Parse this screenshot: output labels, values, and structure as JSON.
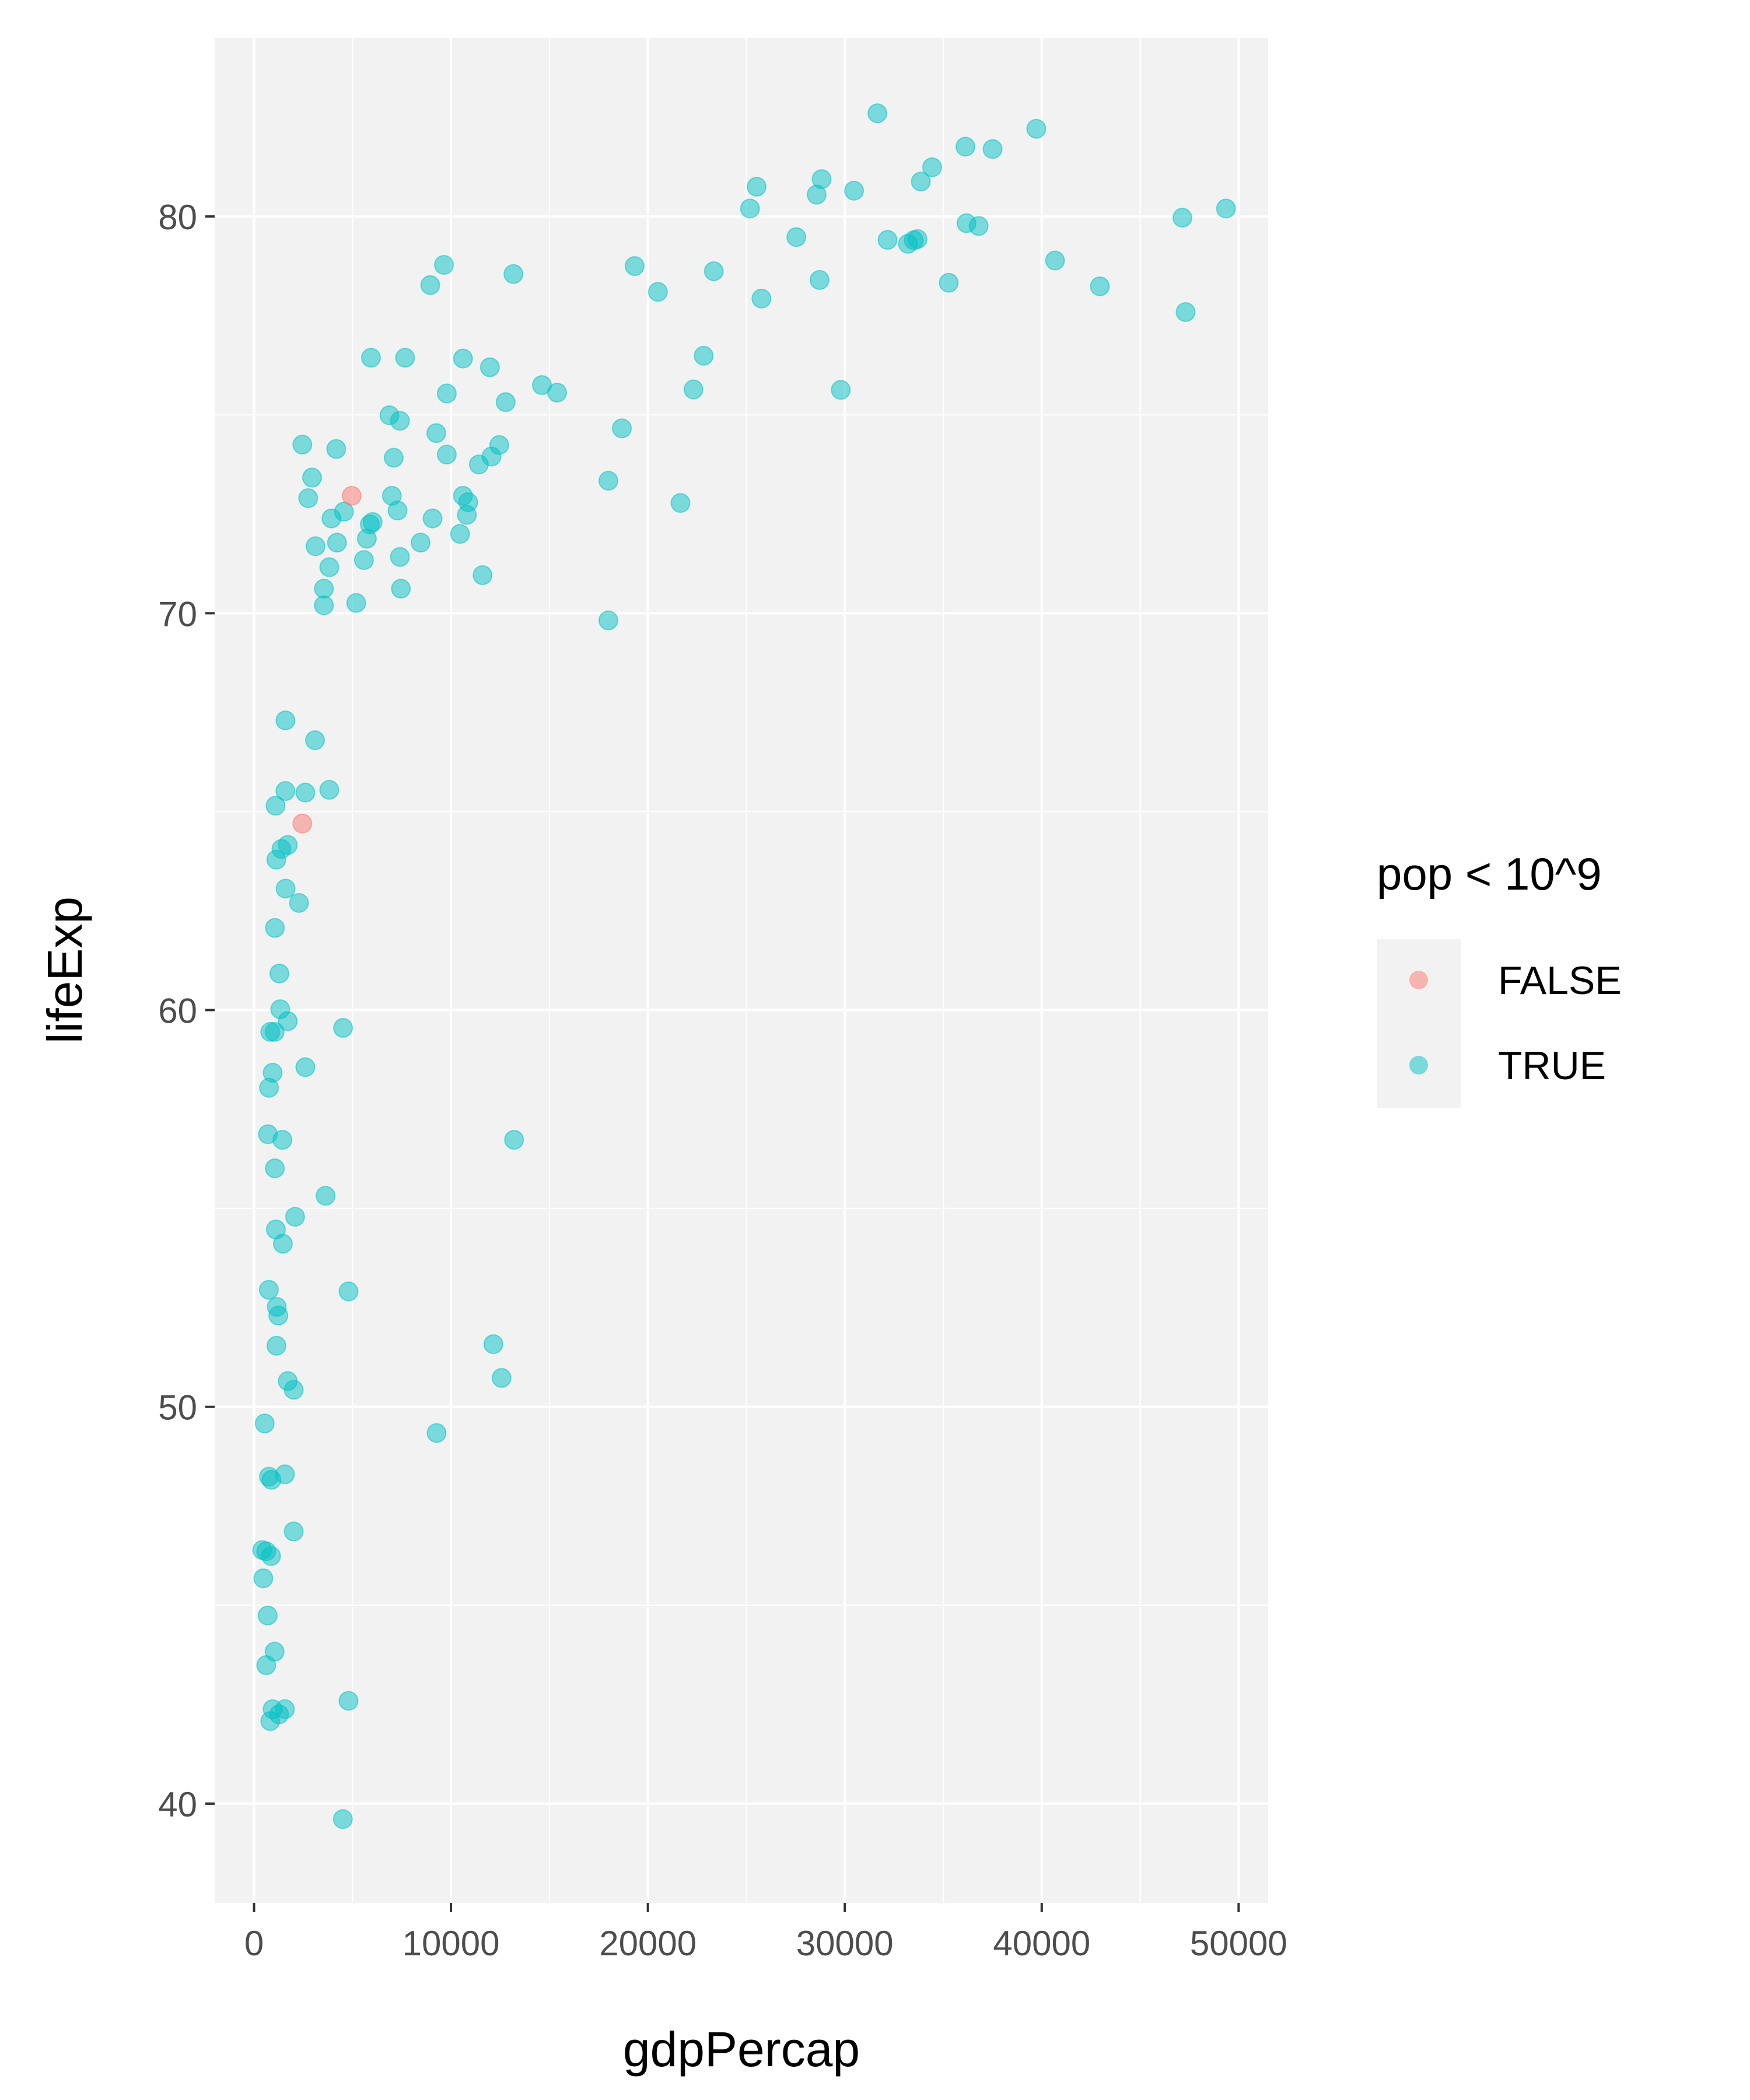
{
  "chart_data": {
    "type": "scatter",
    "title": "",
    "xlabel": "gdpPercap",
    "ylabel": "lifeExp",
    "xlim": [
      -2000,
      51500
    ],
    "ylim": [
      37.5,
      84.5
    ],
    "x_ticks": [
      0,
      10000,
      20000,
      30000,
      40000,
      50000
    ],
    "x_tick_labels": [
      "0",
      "10000",
      "20000",
      "30000",
      "40000",
      "50000"
    ],
    "y_ticks": [
      40,
      50,
      60,
      70,
      80
    ],
    "y_tick_labels": [
      "40",
      "50",
      "60",
      "70",
      "80"
    ],
    "grid": true,
    "panel_background": "#f2f2f2",
    "legend": {
      "title": "pop < 10^9",
      "position": "right",
      "entries": [
        {
          "label": "FALSE",
          "color": "#F8766D"
        },
        {
          "label": "TRUE",
          "color": "#00BFC4"
        }
      ]
    },
    "series": [
      {
        "name": "FALSE",
        "color": "#F8766D",
        "points": [
          [
            4959,
            72.96
          ],
          [
            2452,
            64.7
          ]
        ]
      },
      {
        "name": "TRUE",
        "color": "#00BFC4",
        "points": [
          [
            31656,
            82.6
          ],
          [
            39725,
            82.21
          ],
          [
            36126,
            81.76
          ],
          [
            37506,
            81.7
          ],
          [
            34435,
            81.24
          ],
          [
            28821,
            80.94
          ],
          [
            33860,
            80.88
          ],
          [
            25523,
            80.75
          ],
          [
            30470,
            80.65
          ],
          [
            28570,
            80.55
          ],
          [
            25185,
            80.2
          ],
          [
            49357,
            80.2
          ],
          [
            47143,
            79.97
          ],
          [
            36181,
            79.83
          ],
          [
            36797,
            79.76
          ],
          [
            27538,
            79.48
          ],
          [
            32170,
            79.41
          ],
          [
            33693,
            79.43
          ],
          [
            33207,
            79.31
          ],
          [
            33500,
            79.4
          ],
          [
            40676,
            78.89
          ],
          [
            19328,
            78.75
          ],
          [
            9645,
            78.78
          ],
          [
            13172,
            78.55
          ],
          [
            23348,
            78.62
          ],
          [
            8948,
            78.27
          ],
          [
            28718,
            78.4
          ],
          [
            35278,
            78.33
          ],
          [
            42952,
            78.24
          ],
          [
            20510,
            78.1
          ],
          [
            25768,
            77.93
          ],
          [
            47307,
            77.59
          ],
          [
            5937,
            76.44
          ],
          [
            7670,
            76.44
          ],
          [
            10611,
            76.42
          ],
          [
            11977,
            76.2
          ],
          [
            22833,
            76.49
          ],
          [
            14619,
            75.75
          ],
          [
            22316,
            75.64
          ],
          [
            15390,
            75.56
          ],
          [
            29796,
            75.63
          ],
          [
            9787,
            75.54
          ],
          [
            12779,
            75.32
          ],
          [
            6873,
            74.99
          ],
          [
            7409,
            74.85
          ],
          [
            18678,
            74.66
          ],
          [
            9253,
            74.54
          ],
          [
            2452,
            74.25
          ],
          [
            4173,
            74.14
          ],
          [
            12451,
            74.24
          ],
          [
            9786,
            74.0
          ],
          [
            7092,
            73.92
          ],
          [
            12057,
            73.95
          ],
          [
            11416,
            73.75
          ],
          [
            2945,
            73.42
          ],
          [
            17993,
            73.34
          ],
          [
            2749,
            72.9
          ],
          [
            6999,
            72.96
          ],
          [
            10611,
            72.96
          ],
          [
            10875,
            72.8
          ],
          [
            21655,
            72.78
          ],
          [
            4566,
            72.56
          ],
          [
            3930,
            72.39
          ],
          [
            7288,
            72.59
          ],
          [
            6025,
            72.3
          ],
          [
            5881,
            72.24
          ],
          [
            9066,
            72.39
          ],
          [
            10807,
            72.48
          ],
          [
            5728,
            71.88
          ],
          [
            10461,
            72.0
          ],
          [
            4210,
            71.78
          ],
          [
            8458,
            71.78
          ],
          [
            3121,
            71.69
          ],
          [
            5581,
            71.34
          ],
          [
            7408,
            71.42
          ],
          [
            3821,
            71.16
          ],
          [
            11604,
            70.96
          ],
          [
            3548,
            70.62
          ],
          [
            7458,
            70.62
          ],
          [
            3548,
            70.2
          ],
          [
            5187,
            70.26
          ],
          [
            17993,
            69.82
          ],
          [
            1595,
            67.3
          ],
          [
            3096,
            66.8
          ],
          [
            1592,
            65.52
          ],
          [
            2605,
            65.48
          ],
          [
            3820,
            65.55
          ],
          [
            1091,
            65.15
          ],
          [
            1713,
            64.16
          ],
          [
            1391,
            64.06
          ],
          [
            1131,
            63.79
          ],
          [
            1603,
            63.06
          ],
          [
            2281,
            62.7
          ],
          [
            1059,
            62.07
          ],
          [
            1287,
            60.92
          ],
          [
            1328,
            60.02
          ],
          [
            1712,
            59.72
          ],
          [
            4519,
            59.55
          ],
          [
            824,
            59.45
          ],
          [
            1045,
            59.45
          ],
          [
            2606,
            58.56
          ],
          [
            944,
            58.42
          ],
          [
            759,
            58.04
          ],
          [
            706,
            56.87
          ],
          [
            1441,
            56.73
          ],
          [
            13206,
            56.73
          ],
          [
            1057,
            56.01
          ],
          [
            3633,
            55.32
          ],
          [
            2082,
            54.79
          ],
          [
            1107,
            54.47
          ],
          [
            1463,
            54.11
          ],
          [
            752,
            52.95
          ],
          [
            4797,
            52.91
          ],
          [
            1154,
            52.52
          ],
          [
            1232,
            52.3
          ],
          [
            1138,
            51.54
          ],
          [
            12155,
            51.58
          ],
          [
            1712,
            50.65
          ],
          [
            2014,
            50.43
          ],
          [
            12570,
            50.73
          ],
          [
            9270,
            49.34
          ],
          [
            541,
            49.58
          ],
          [
            1569,
            48.3
          ],
          [
            758,
            48.24
          ],
          [
            883,
            48.16
          ],
          [
            2013,
            46.86
          ],
          [
            415,
            46.39
          ],
          [
            620,
            46.36
          ],
          [
            863,
            46.24
          ],
          [
            470,
            45.68
          ],
          [
            691,
            44.74
          ],
          [
            1044,
            43.83
          ],
          [
            619,
            43.49
          ],
          [
            4797,
            42.59
          ],
          [
            1569,
            42.38
          ],
          [
            943,
            42.38
          ],
          [
            1271,
            42.25
          ],
          [
            824,
            42.08
          ],
          [
            4511,
            39.61
          ]
        ]
      }
    ]
  }
}
